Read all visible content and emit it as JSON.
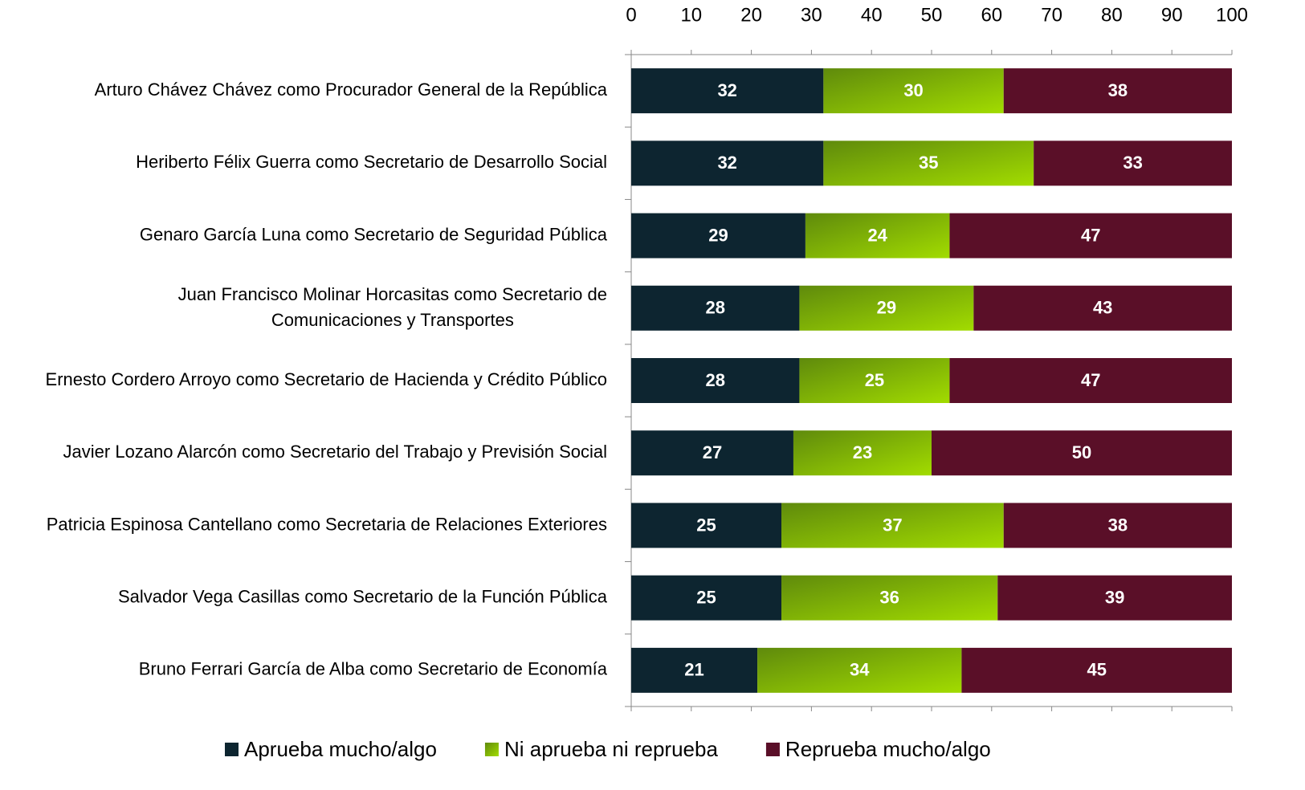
{
  "chart_data": {
    "type": "stacked-bar-horizontal",
    "categories": [
      "Arturo Chávez Chávez como Procurador General de la República",
      "Heriberto Félix Guerra como Secretario de Desarrollo Social",
      "Genaro García Luna como Secretario de Seguridad Pública",
      "Juan Francisco Molinar Horcasitas como Secretario de Comunicaciones y Transportes",
      "Ernesto Cordero Arroyo como Secretario de Hacienda y Crédito Público",
      "Javier Lozano Alarcón como Secretario del Trabajo y Previsión Social",
      "Patricia Espinosa Cantellano como Secretaria de Relaciones Exteriores",
      "Salvador Vega Casillas como Secretario de la Función Pública",
      "Bruno Ferrari García de Alba como Secretario de Economía"
    ],
    "series": [
      {
        "name": "Aprueba mucho/algo",
        "color": "#0d2530",
        "values": [
          32,
          32,
          29,
          28,
          28,
          27,
          25,
          25,
          21
        ]
      },
      {
        "name": "Ni aprueba ni reprueba",
        "color": "#8cc200",
        "values": [
          30,
          35,
          24,
          29,
          25,
          23,
          37,
          36,
          34
        ]
      },
      {
        "name": "Reprueba mucho/algo",
        "color": "#5a0f28",
        "values": [
          38,
          33,
          47,
          43,
          47,
          50,
          38,
          39,
          45
        ]
      }
    ],
    "xlim": [
      0,
      100
    ],
    "xticks": [
      0,
      10,
      20,
      30,
      40,
      50,
      60,
      70,
      80,
      90,
      100
    ],
    "grid": false
  }
}
